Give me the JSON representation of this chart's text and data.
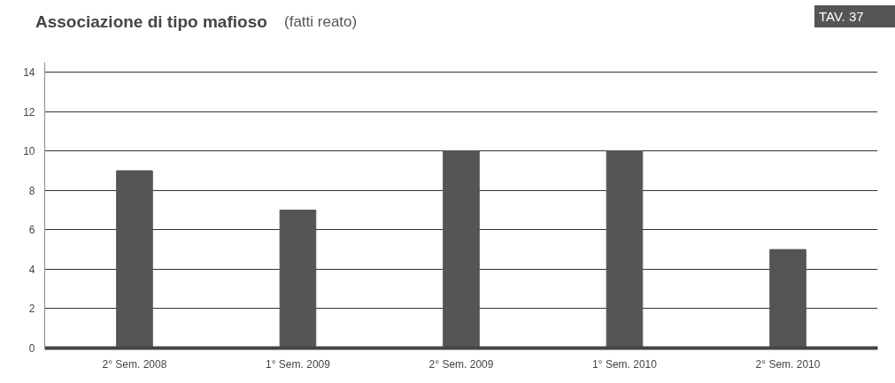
{
  "chart_data": {
    "type": "bar",
    "title": "Associazione di tipo mafioso",
    "subtitle": "(fatti reato)",
    "annotations": [
      "TAV. 37"
    ],
    "categories": [
      "2° Sem. 2008",
      "1° Sem. 2009",
      "2° Sem. 2009",
      "1° Sem. 2010",
      "2° Sem. 2010"
    ],
    "values": [
      9,
      7,
      10,
      10,
      5
    ],
    "color": "#555555",
    "ylim": [
      0,
      14.5
    ],
    "yticks": [
      0,
      2,
      4,
      6,
      8,
      10,
      12,
      14
    ],
    "grid": "y"
  }
}
